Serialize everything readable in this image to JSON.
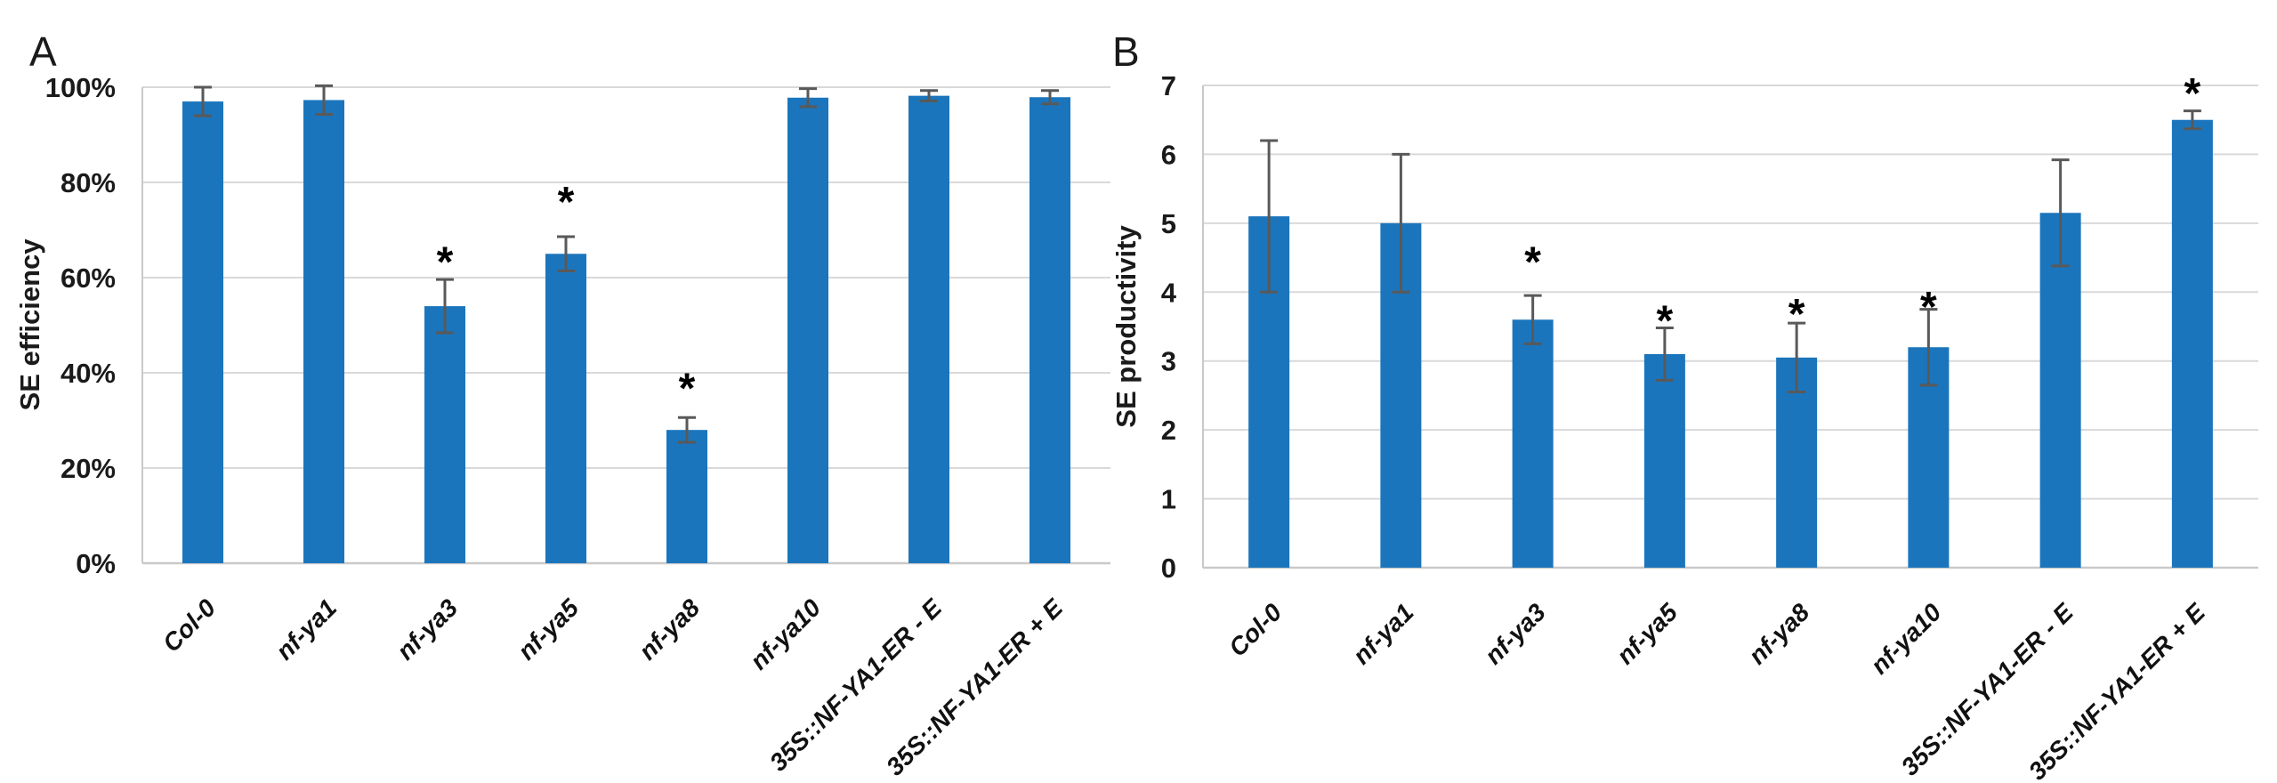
{
  "figure": {
    "background": "#FFFFFF",
    "panels": [
      {
        "label": "A"
      },
      {
        "label": "B"
      }
    ]
  },
  "chart_data": [
    {
      "type": "bar",
      "panel": "A",
      "title": "",
      "xlabel": "",
      "ylabel": "SE efficiency",
      "ylim": [
        0,
        100
      ],
      "grid": true,
      "legend": "none",
      "bar_color": "#1B75BC",
      "error_bar_color": "#595959",
      "gridline_color": "#D9D9D9",
      "axis_line_color": "#C9C9C9",
      "ytick_values": [
        0,
        20,
        40,
        60,
        80,
        100
      ],
      "ytick_labels": [
        "0%",
        "20%",
        "40%",
        "60%",
        "80%",
        "100%"
      ],
      "categories": [
        "Col-0",
        "nf-ya1",
        "nf-ya3",
        "nf-ya5",
        "nf-ya8",
        "nf-ya10",
        "35S::NF-YA1-ER - E",
        "35S::NF-YA1-ER + E"
      ],
      "values": [
        97,
        97.3,
        54,
        65,
        28,
        97.8,
        98.2,
        97.9
      ],
      "errors": [
        3.0,
        3.0,
        5.6,
        3.6,
        2.6,
        1.9,
        1.1,
        1.4
      ],
      "significance": [
        "",
        "",
        "*",
        "*",
        "*",
        "",
        "",
        ""
      ],
      "significance_y": [
        null,
        null,
        65,
        77.6,
        38.4,
        null,
        null,
        null
      ]
    },
    {
      "type": "bar",
      "panel": "B",
      "title": "",
      "xlabel": "",
      "ylabel": "SE productivity",
      "ylim": [
        0,
        7
      ],
      "grid": true,
      "legend": "none",
      "bar_color": "#1B75BC",
      "error_bar_color": "#595959",
      "gridline_color": "#D9D9D9",
      "axis_line_color": "#C9C9C9",
      "ytick_values": [
        0,
        1,
        2,
        3,
        4,
        5,
        6,
        7
      ],
      "ytick_labels": [
        "0",
        "1",
        "2",
        "3",
        "4",
        "5",
        "6",
        "7"
      ],
      "categories": [
        "Col-0",
        "nf-ya1",
        "nf-ya3",
        "nf-ya5",
        "nf-ya8",
        "nf-ya10",
        "35S::NF-YA1-ER - E",
        "35S::NF-YA1-ER + E"
      ],
      "values": [
        5.1,
        5.0,
        3.6,
        3.1,
        3.05,
        3.2,
        5.15,
        6.5
      ],
      "errors": [
        1.1,
        1.0,
        0.35,
        0.38,
        0.5,
        0.55,
        0.77,
        0.13
      ],
      "significance": [
        "",
        "",
        "*",
        "*",
        "*",
        "*",
        "",
        "*"
      ],
      "significance_y": [
        null,
        null,
        4.55,
        3.7,
        3.8,
        3.9,
        null,
        7.0
      ]
    }
  ]
}
